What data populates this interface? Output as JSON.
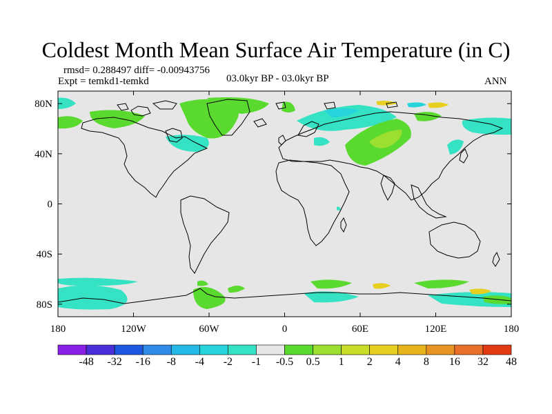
{
  "title": "Coldest Month Mean Surface Air Temperature (in C)",
  "stats_line": "rmsd= 0.288497 diff= -0.00943756",
  "experiment_line": "Expt = temkd1-temkd",
  "period": "03.0kyr BP - 03.0kyr BP",
  "season": "ANN",
  "axes": {
    "lon_ticks": [
      "180",
      "120W",
      "60W",
      "0",
      "60E",
      "120E",
      "180"
    ],
    "lat_ticks": [
      "80N",
      "40N",
      "0",
      "40S",
      "80S"
    ]
  },
  "colorbar": {
    "colors": [
      "#8a1fe6",
      "#4a2fd8",
      "#1f58e0",
      "#2f8ae8",
      "#23b8e6",
      "#26d4dc",
      "#35e2c4",
      "#e6e6e6",
      "#5ad92f",
      "#9bdf30",
      "#c8dc28",
      "#e6cf1f",
      "#e8b41c",
      "#e89222",
      "#e8702a",
      "#e23a12"
    ],
    "labels": [
      "-48",
      "-32",
      "-16",
      "-8",
      "-4",
      "-2",
      "-1",
      "-0.5",
      "0.5",
      "1",
      "2",
      "4",
      "8",
      "16",
      "32",
      "48"
    ]
  },
  "map": {
    "background_color": "#e6e6e6",
    "anomaly_colors": {
      "neg_small": "#35e2c4",
      "neg_med": "#26d4dc",
      "pos_small": "#5ad92f",
      "pos_med": "#9bdf30",
      "pos_large": "#e6cf1f"
    }
  }
}
